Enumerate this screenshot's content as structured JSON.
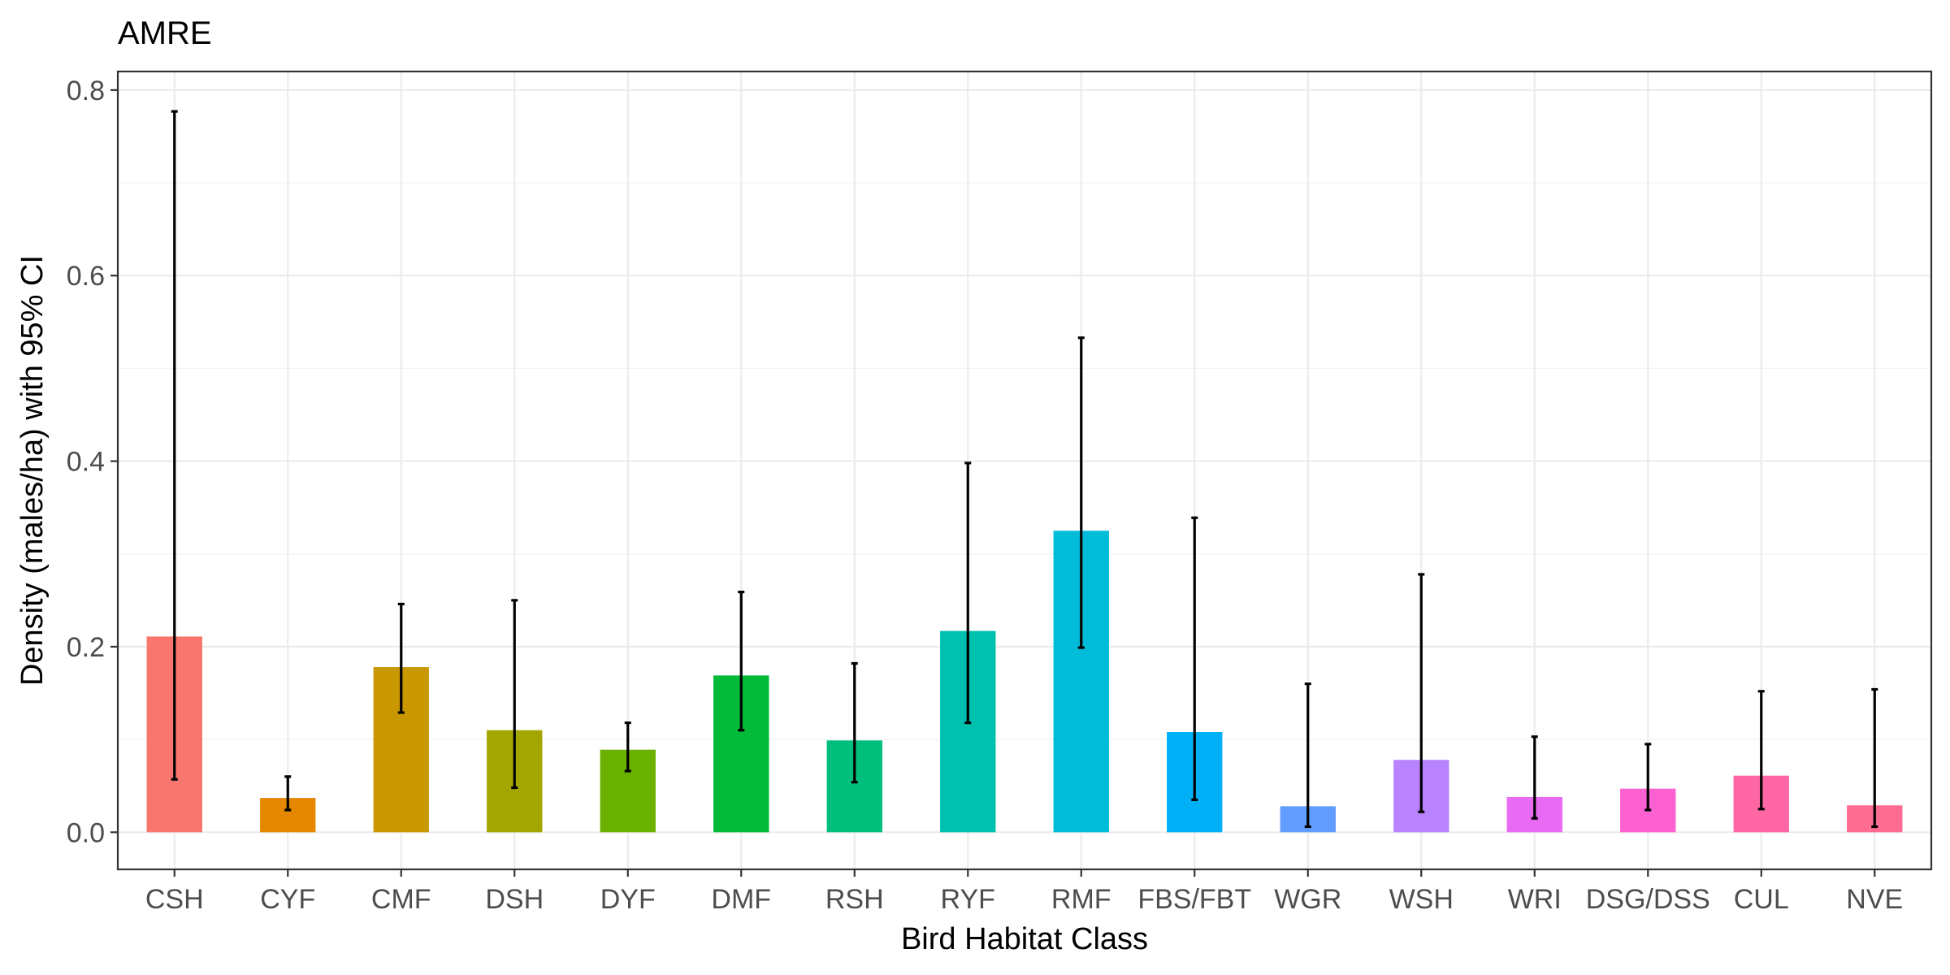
{
  "chart_data": {
    "type": "bar",
    "title": "AMRE",
    "xlabel": "Bird Habitat Class",
    "ylabel": "Density (males/ha) with 95% CI",
    "ylim": [
      -0.04,
      0.82
    ],
    "yticks": [
      0.0,
      0.2,
      0.4,
      0.6,
      0.8
    ],
    "ytick_labels": [
      "0.0",
      "0.2",
      "0.4",
      "0.6",
      "0.8"
    ],
    "grid": true,
    "legend": "none",
    "categories": [
      "CSH",
      "CYF",
      "CMF",
      "DSH",
      "DYF",
      "DMF",
      "RSH",
      "RYF",
      "RMF",
      "FBS/FBT",
      "WGR",
      "WSH",
      "WRI",
      "DSG/DSS",
      "CUL",
      "NVE"
    ],
    "values": [
      0.211,
      0.037,
      0.178,
      0.11,
      0.089,
      0.169,
      0.099,
      0.217,
      0.325,
      0.108,
      0.028,
      0.078,
      0.038,
      0.047,
      0.061,
      0.029
    ],
    "ci_lower": [
      0.057,
      0.024,
      0.129,
      0.048,
      0.066,
      0.11,
      0.054,
      0.118,
      0.199,
      0.035,
      0.006,
      0.022,
      0.015,
      0.024,
      0.025,
      0.006
    ],
    "ci_upper": [
      0.777,
      0.06,
      0.246,
      0.25,
      0.118,
      0.259,
      0.182,
      0.398,
      0.533,
      0.339,
      0.16,
      0.278,
      0.103,
      0.095,
      0.152,
      0.154
    ],
    "colors": [
      "#F8766D",
      "#E58700",
      "#C99800",
      "#A3A500",
      "#6BB100",
      "#00BA38",
      "#00BF7D",
      "#00C0AF",
      "#00BCD8",
      "#00B0F6",
      "#619CFF",
      "#B983FF",
      "#E76BF3",
      "#FD61D1",
      "#FF67A4",
      "#FF6C91"
    ]
  }
}
